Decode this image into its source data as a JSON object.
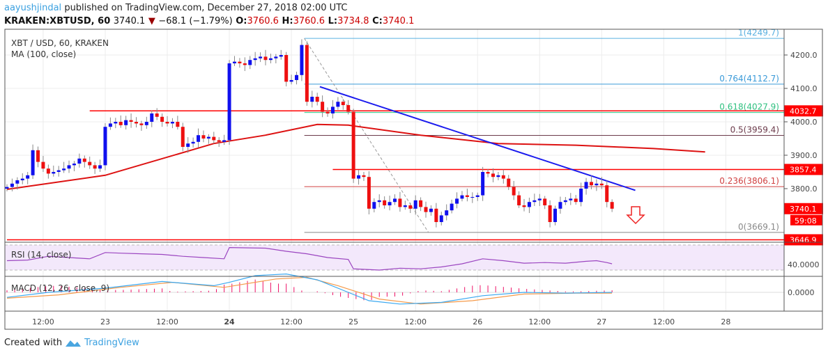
{
  "header": {
    "author": "aayushjindal",
    "published": "published on TradingView.com, December 27, 2018 02:00 UTC",
    "symbol": "KRAKEN:XBTUSD, 60",
    "last": "3740.1",
    "change": "−68.1 (−1.79%)",
    "o_label": "O:",
    "o": "3760.6",
    "h_label": "H:",
    "h": "3760.6",
    "l_label": "L:",
    "l": "3734.8",
    "c_label": "C:",
    "c": "3740.1"
  },
  "legend": {
    "title": "XBT / USD, 60, KRAKEN",
    "ma": "MA (100, close)",
    "rsi": "RSI (14, close)",
    "macd": "MACD (12, 26, close, 9)"
  },
  "colors": {
    "up": "#1010ee",
    "down": "#ee1010",
    "ma": "#dd1111",
    "trend": "#1a1aee",
    "rsi": "#9b45c0",
    "macd": "#3aa8f0",
    "signal": "#f59a4a",
    "hist": "#ee1166"
  },
  "chart_data": {
    "type": "candlestick",
    "start": "Dec 22 05:00",
    "interval_hours": 1,
    "closes": [
      3805,
      3815,
      3825,
      3830,
      3840,
      3915,
      3880,
      3860,
      3845,
      3850,
      3855,
      3860,
      3870,
      3875,
      3890,
      3880,
      3870,
      3860,
      3870,
      3985,
      3995,
      4000,
      3990,
      4005,
      4000,
      3995,
      3990,
      4000,
      4025,
      4015,
      4000,
      3995,
      4000,
      3985,
      3925,
      3935,
      3940,
      3960,
      3950,
      3955,
      3945,
      3940,
      3945,
      4175,
      4180,
      4175,
      4170,
      4185,
      4190,
      4195,
      4185,
      4190,
      4195,
      4200,
      4120,
      4125,
      4140,
      4230,
      4060,
      4075,
      4060,
      4030,
      4025,
      4045,
      4060,
      4050,
      4030,
      3830,
      3840,
      3835,
      3740,
      3760,
      3765,
      3750,
      3760,
      3770,
      3745,
      3750,
      3740,
      3765,
      3745,
      3730,
      3740,
      3700,
      3720,
      3735,
      3755,
      3770,
      3780,
      3775,
      3775,
      3780,
      3850,
      3845,
      3835,
      3840,
      3830,
      3805,
      3780,
      3750,
      3745,
      3760,
      3765,
      3770,
      3750,
      3700,
      3740,
      3760,
      3765,
      3770,
      3760,
      3800,
      3820,
      3810,
      3815,
      3810,
      3760,
      3740
    ],
    "ma100": [
      [
        0,
        3798
      ],
      [
        19,
        3840
      ],
      [
        40,
        3935
      ],
      [
        50,
        3960
      ],
      [
        60,
        3992
      ],
      [
        66,
        3990
      ],
      [
        80,
        3960
      ],
      [
        95,
        3935
      ],
      [
        110,
        3930
      ],
      [
        125,
        3920
      ],
      [
        135,
        3910
      ]
    ],
    "ylim": [
      3620,
      4275
    ],
    "y_ticks": [
      "4200.0",
      "4100.0",
      "4000.0",
      "3900.0",
      "3800.0"
    ],
    "x_ticks": [
      "12:00",
      "23",
      "12:00",
      "24",
      "12:00",
      "25",
      "12:00",
      "26",
      "12:00",
      "27",
      "12:00",
      "28"
    ],
    "fib": [
      {
        "label": "1(4249.7)",
        "value": 4249.7,
        "color": "#5ab0e0"
      },
      {
        "label": "0.764(4112.7)",
        "value": 4112.7,
        "color": "#3a9ad8"
      },
      {
        "label": "0.618(4027.9)",
        "value": 4027.9,
        "color": "#30c080"
      },
      {
        "label": "0.5(3959.4)",
        "value": 3959.4,
        "color": "#6b3a4a"
      },
      {
        "label": "0.236(3806.1)",
        "value": 3806.1,
        "color": "#d04040"
      },
      {
        "label": "0(3669.1)",
        "value": 3669.1,
        "color": "#888888"
      }
    ],
    "horizontals": [
      {
        "label": "4032.7",
        "value": 4032.7,
        "from_hour": 16
      },
      {
        "label": "3857.4",
        "value": 3857.4,
        "from_hour": 63
      },
      {
        "label": "3646.9",
        "value": 3646.9,
        "from_hour": 0
      }
    ],
    "trendline": [
      [
        60.5,
        4105
      ],
      [
        121.5,
        3795
      ]
    ],
    "price_badge": "3740.1",
    "countdown": "59:08",
    "rsi_label": "40.0000",
    "rsi": [
      [
        0,
        45
      ],
      [
        4,
        46
      ],
      [
        8,
        52
      ],
      [
        12,
        50
      ],
      [
        16,
        48
      ],
      [
        19,
        58
      ],
      [
        22,
        57
      ],
      [
        26,
        56
      ],
      [
        30,
        55
      ],
      [
        34,
        52
      ],
      [
        38,
        50
      ],
      [
        42,
        48
      ],
      [
        43,
        66
      ],
      [
        50,
        65
      ],
      [
        54,
        60
      ],
      [
        58,
        56
      ],
      [
        62,
        50
      ],
      [
        66,
        47
      ],
      [
        67,
        32
      ],
      [
        72,
        30
      ],
      [
        76,
        33
      ],
      [
        80,
        32
      ],
      [
        84,
        35
      ],
      [
        88,
        40
      ],
      [
        92,
        48
      ],
      [
        96,
        45
      ],
      [
        100,
        41
      ],
      [
        104,
        42
      ],
      [
        108,
        41
      ],
      [
        112,
        44
      ],
      [
        114,
        45
      ],
      [
        116,
        42
      ],
      [
        117,
        40
      ]
    ],
    "macd_label": "0.0000",
    "macd": [
      [
        0,
        -6
      ],
      [
        8,
        0
      ],
      [
        19,
        5
      ],
      [
        30,
        13
      ],
      [
        40,
        8
      ],
      [
        43,
        12
      ],
      [
        48,
        20
      ],
      [
        54,
        22
      ],
      [
        60,
        15
      ],
      [
        66,
        0
      ],
      [
        70,
        -10
      ],
      [
        76,
        -14
      ],
      [
        84,
        -12
      ],
      [
        92,
        -4
      ],
      [
        100,
        0
      ],
      [
        108,
        -1
      ],
      [
        117,
        0
      ]
    ],
    "signal": [
      [
        0,
        -7
      ],
      [
        10,
        -3
      ],
      [
        22,
        6
      ],
      [
        32,
        12
      ],
      [
        42,
        6
      ],
      [
        52,
        16
      ],
      [
        58,
        18
      ],
      [
        64,
        8
      ],
      [
        72,
        -8
      ],
      [
        80,
        -14
      ],
      [
        90,
        -10
      ],
      [
        100,
        -2
      ],
      [
        110,
        -1
      ],
      [
        117,
        -1
      ]
    ]
  },
  "footer": {
    "created": "Created with",
    "brand": "TradingView"
  }
}
